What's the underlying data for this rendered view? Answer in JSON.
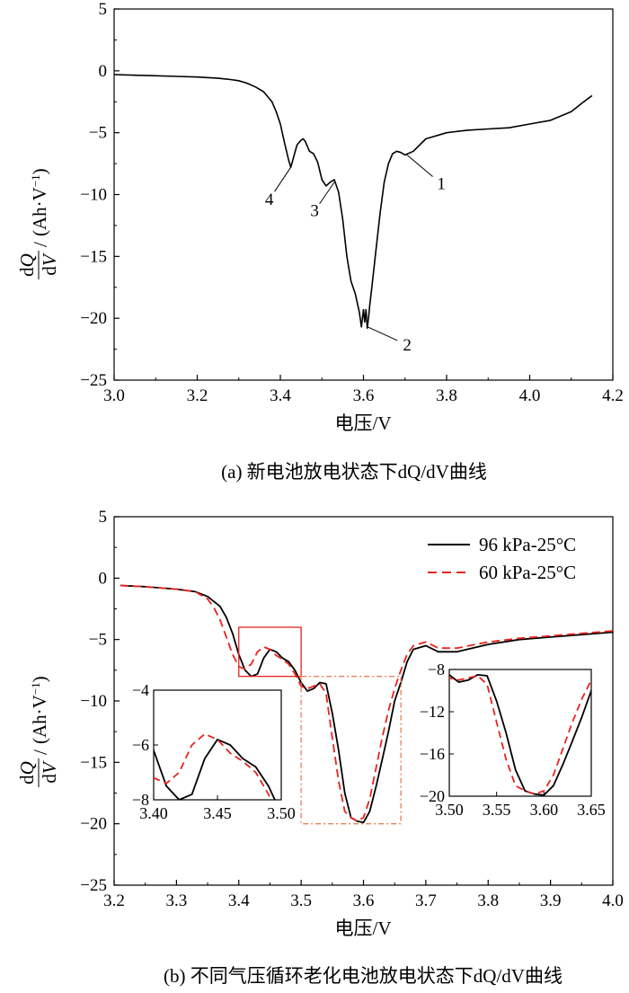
{
  "chart_data": [
    {
      "type": "line",
      "caption": "(a) 新电池放电状态下dQ/dV曲线",
      "xlabel": "电压/V",
      "ylabel": "dQ/dV /(Ah·V⁻¹)",
      "xlim": [
        3.0,
        4.2
      ],
      "ylim": [
        -25,
        5
      ],
      "xticks": [
        "3.0",
        "3.2",
        "3.4",
        "3.6",
        "3.8",
        "4.0",
        "4.2"
      ],
      "yticks": [
        "5",
        "0",
        "-5",
        "-10",
        "-15",
        "-20",
        "-25"
      ],
      "series": [
        {
          "color": "#000000",
          "x": [
            3.0,
            3.05,
            3.1,
            3.15,
            3.2,
            3.25,
            3.28,
            3.3,
            3.32,
            3.34,
            3.36,
            3.38,
            3.39,
            3.4,
            3.41,
            3.42,
            3.425,
            3.43,
            3.44,
            3.45,
            3.455,
            3.46,
            3.47,
            3.48,
            3.49,
            3.5,
            3.51,
            3.52,
            3.53,
            3.54,
            3.55,
            3.56,
            3.57,
            3.58,
            3.59,
            3.595,
            3.6,
            3.603,
            3.606,
            3.609,
            3.612,
            3.615,
            3.62,
            3.63,
            3.64,
            3.65,
            3.66,
            3.67,
            3.68,
            3.69,
            3.7,
            3.72,
            3.75,
            3.8,
            3.85,
            3.9,
            3.95,
            4.0,
            4.05,
            4.1,
            4.13,
            4.15
          ],
          "y": [
            -0.3,
            -0.35,
            -0.4,
            -0.45,
            -0.5,
            -0.6,
            -0.7,
            -0.8,
            -1.0,
            -1.3,
            -1.7,
            -2.5,
            -3.3,
            -4.3,
            -5.8,
            -7.2,
            -7.8,
            -7.2,
            -6.0,
            -5.6,
            -5.5,
            -5.7,
            -6.5,
            -6.7,
            -7.4,
            -8.8,
            -9.3,
            -9.0,
            -8.8,
            -9.8,
            -12.0,
            -15.0,
            -17.0,
            -18.0,
            -19.5,
            -20.7,
            -19.3,
            -20.3,
            -19.3,
            -20.8,
            -20.0,
            -19.0,
            -17.5,
            -14.5,
            -11.5,
            -9.0,
            -7.5,
            -6.7,
            -6.5,
            -6.6,
            -6.8,
            -6.5,
            -5.5,
            -5.0,
            -4.8,
            -4.7,
            -4.6,
            -4.3,
            -4.0,
            -3.3,
            -2.5,
            -2.0
          ]
        }
      ],
      "annotations": [
        {
          "label": "1",
          "x": 3.705,
          "y": -6.8
        },
        {
          "label": "2",
          "x": 3.61,
          "y": -20.7
        },
        {
          "label": "3",
          "x": 3.53,
          "y": -9.0
        },
        {
          "label": "4",
          "x": 3.425,
          "y": -7.8
        }
      ]
    },
    {
      "type": "line",
      "caption": "(b) 不同气压循环老化电池放电状态下dQ/dV曲线",
      "xlabel": "电压/V",
      "ylabel": "dQ/dV /(Ah·V⁻¹)",
      "xlim": [
        3.2,
        4.0
      ],
      "ylim": [
        -25,
        5
      ],
      "xticks": [
        "3.2",
        "3.3",
        "3.4",
        "3.5",
        "3.6",
        "3.7",
        "3.8",
        "3.9",
        "4.0"
      ],
      "yticks": [
        "5",
        "0",
        "-5",
        "-10",
        "-15",
        "-20",
        "-25"
      ],
      "legend": "top-right",
      "series": [
        {
          "name": "96 kPa-25°C",
          "color": "#000000",
          "dash": "solid",
          "x": [
            3.21,
            3.25,
            3.3,
            3.33,
            3.35,
            3.37,
            3.38,
            3.39,
            3.4,
            3.41,
            3.42,
            3.43,
            3.44,
            3.45,
            3.46,
            3.47,
            3.48,
            3.49,
            3.5,
            3.51,
            3.52,
            3.53,
            3.54,
            3.55,
            3.56,
            3.57,
            3.58,
            3.59,
            3.6,
            3.61,
            3.62,
            3.63,
            3.64,
            3.65,
            3.66,
            3.67,
            3.68,
            3.7,
            3.72,
            3.75,
            3.8,
            3.85,
            3.9,
            3.95,
            4.0
          ],
          "y": [
            -0.6,
            -0.7,
            -0.9,
            -1.1,
            -1.5,
            -2.3,
            -3.2,
            -4.5,
            -6.2,
            -7.5,
            -8.0,
            -7.8,
            -6.5,
            -5.8,
            -6.0,
            -6.5,
            -6.8,
            -7.5,
            -8.5,
            -9.2,
            -9.0,
            -8.5,
            -8.6,
            -11.0,
            -14.0,
            -17.5,
            -19.5,
            -19.8,
            -19.9,
            -19.0,
            -17.0,
            -14.8,
            -12.5,
            -10.0,
            -8.5,
            -6.8,
            -5.8,
            -5.5,
            -6.0,
            -6.0,
            -5.4,
            -5.0,
            -4.8,
            -4.6,
            -4.4
          ]
        },
        {
          "name": "60 kPa-25°C",
          "color": "#e8231e",
          "dash": "dashed",
          "x": [
            3.21,
            3.25,
            3.3,
            3.33,
            3.35,
            3.36,
            3.37,
            3.38,
            3.39,
            3.4,
            3.41,
            3.42,
            3.43,
            3.44,
            3.45,
            3.46,
            3.47,
            3.48,
            3.49,
            3.5,
            3.51,
            3.52,
            3.53,
            3.54,
            3.55,
            3.56,
            3.57,
            3.58,
            3.59,
            3.6,
            3.61,
            3.62,
            3.63,
            3.64,
            3.65,
            3.66,
            3.67,
            3.68,
            3.7,
            3.72,
            3.75,
            3.8,
            3.85,
            3.9,
            3.95,
            4.0
          ],
          "y": [
            -0.6,
            -0.7,
            -0.9,
            -1.1,
            -1.7,
            -2.4,
            -3.4,
            -4.8,
            -6.2,
            -7.2,
            -7.4,
            -7.0,
            -6.0,
            -5.6,
            -5.8,
            -6.3,
            -6.6,
            -7.0,
            -7.8,
            -8.8,
            -9.0,
            -8.8,
            -8.6,
            -9.4,
            -13.0,
            -16.5,
            -19.0,
            -19.5,
            -19.8,
            -19.5,
            -18.0,
            -15.5,
            -13.0,
            -10.8,
            -9.0,
            -7.5,
            -6.2,
            -5.5,
            -5.2,
            -5.7,
            -5.7,
            -5.2,
            -4.9,
            -4.7,
            -4.5,
            -4.3
          ]
        }
      ],
      "insets": [
        {
          "position": "left",
          "xlim": [
            3.4,
            3.5
          ],
          "ylim": [
            -8,
            -4
          ],
          "xticks": [
            "3.40",
            "3.45",
            "3.50"
          ],
          "yticks": [
            "-4",
            "-6",
            "-8"
          ]
        },
        {
          "position": "right",
          "xlim": [
            3.5,
            3.65
          ],
          "ylim": [
            -20,
            -8
          ],
          "xticks": [
            "3.50",
            "3.55",
            "3.60",
            "3.65"
          ],
          "yticks": [
            "-8",
            "-12",
            "-16",
            "-20"
          ]
        }
      ],
      "highlight_boxes": [
        {
          "color": "#e8231e",
          "style": "solid",
          "xlim": [
            3.4,
            3.5
          ],
          "ylim": [
            -8,
            -4
          ]
        },
        {
          "color": "#e8805a",
          "style": "dash-dot",
          "xlim": [
            3.5,
            3.66
          ],
          "ylim": [
            -20,
            -8
          ]
        }
      ]
    }
  ]
}
